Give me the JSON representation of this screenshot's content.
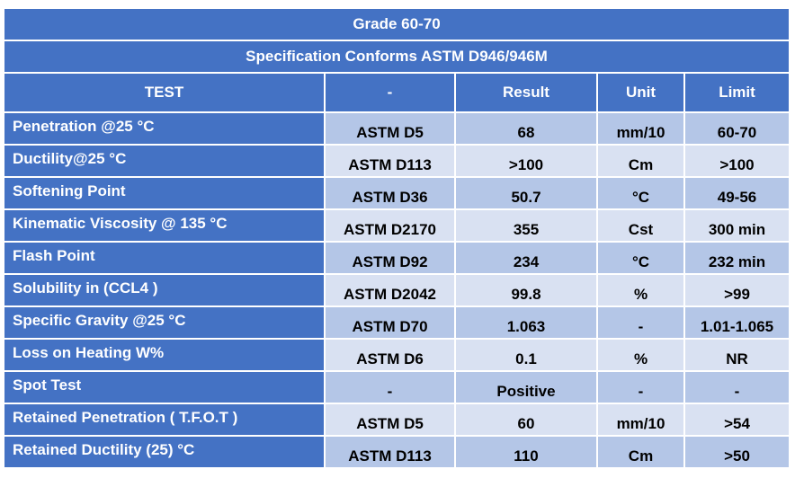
{
  "table": {
    "title": "Grade 60-70",
    "subtitle": "Specification Conforms ASTM D946/946M",
    "header": [
      "TEST",
      "-",
      "Result",
      "Unit",
      "Limit"
    ],
    "rows": [
      [
        "Penetration @25 °C",
        "ASTM D5",
        "68",
        "mm/10",
        "60-70"
      ],
      [
        "Ductility@25 °C",
        "ASTM D113",
        ">100",
        "Cm",
        ">100"
      ],
      [
        "Softening Point",
        "ASTM D36",
        "50.7",
        "°C",
        "49-56"
      ],
      [
        "Kinematic Viscosity @ 135 °C",
        "ASTM D2170",
        "355",
        "Cst",
        "300 min"
      ],
      [
        "Flash Point",
        "ASTM D92",
        "234",
        "°C",
        "232 min"
      ],
      [
        "Solubility in (CCL4 )",
        "ASTM D2042",
        "99.8",
        "%",
        ">99"
      ],
      [
        "Specific Gravity @25 °C",
        "ASTM D70",
        "1.063",
        "-",
        "1.01-1.065"
      ],
      [
        "Loss on Heating W%",
        "ASTM D6",
        "0.1",
        "%",
        "NR"
      ],
      [
        "Spot Test",
        "-",
        "Positive",
        "-",
        "-"
      ],
      [
        "Retained Penetration ( T.F.O.T )",
        "ASTM D5",
        "60",
        "mm/10",
        ">54"
      ],
      [
        "Retained Ductility (25) °C",
        "ASTM D113",
        "110",
        "Cm",
        ">50"
      ]
    ]
  }
}
